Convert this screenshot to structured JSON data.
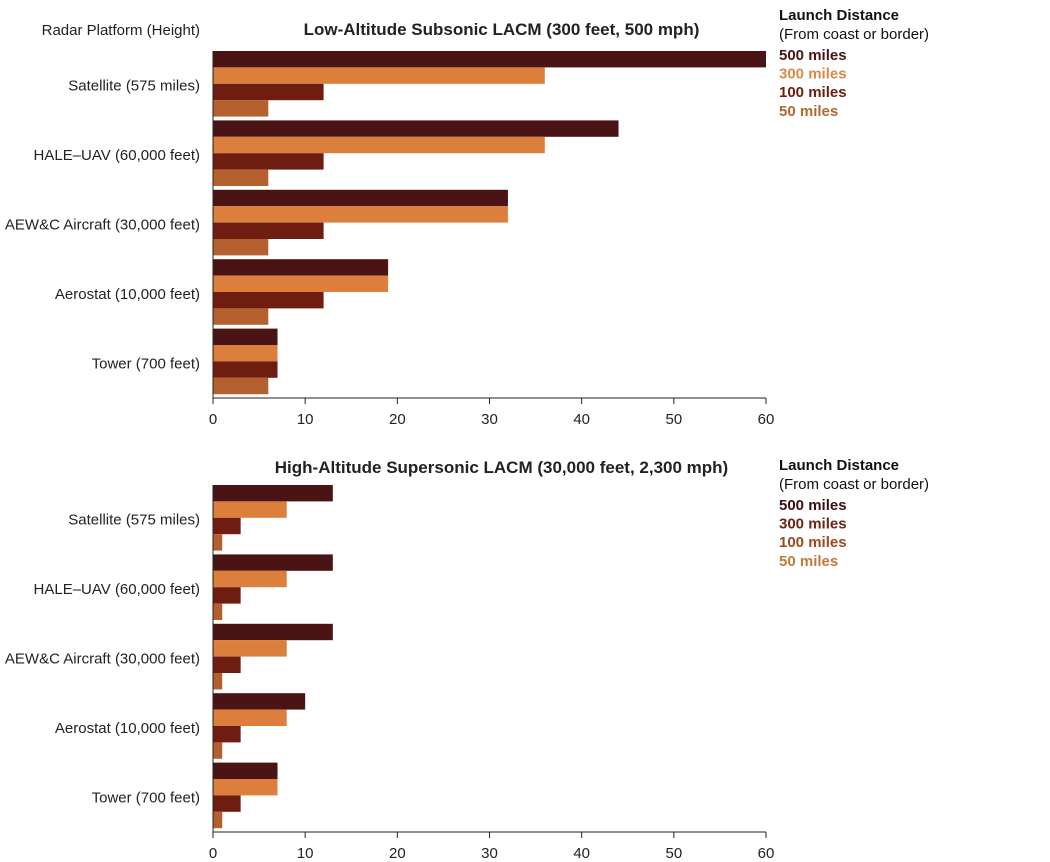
{
  "chart_data": [
    {
      "type": "bar",
      "orientation": "horizontal",
      "title": "Low-Altitude Subsonic LACM (300 feet, 500 mph)",
      "ylabel": "Radar Platform (Height)",
      "xlabel": "",
      "categories": [
        "Satellite (575 miles)",
        "HALE–UAV (60,000 feet)",
        "AEW&C Aircraft (30,000 feet)",
        "Aerostat (10,000 feet)",
        "Tower (700 feet)"
      ],
      "xlim": [
        0,
        60
      ],
      "xticks": [
        "0",
        "10",
        "20",
        "30",
        "40",
        "50",
        "60"
      ],
      "grid": false,
      "legend": {
        "position": "right",
        "title": "Launch Distance",
        "subtitle": "(From coast or border)",
        "items": [
          {
            "label": "500 miles",
            "color": "#4a1414"
          },
          {
            "label": "300 miles",
            "color": "#d98a4a"
          },
          {
            "label": "100 miles",
            "color": "#6e1d10"
          },
          {
            "label": "50 miles",
            "color": "#b4662f"
          }
        ]
      },
      "series": [
        {
          "color": "#4a1414",
          "values": [
            60,
            44,
            32,
            19,
            7
          ]
        },
        {
          "color": "#dc7e3c",
          "values": [
            36,
            36,
            32,
            19,
            7
          ]
        },
        {
          "color": "#6e1d10",
          "values": [
            12,
            12,
            12,
            12,
            7
          ]
        },
        {
          "color": "#b4602e",
          "values": [
            6,
            6,
            6,
            6,
            6
          ]
        }
      ]
    },
    {
      "type": "bar",
      "orientation": "horizontal",
      "title": "High-Altitude Supersonic LACM (30,000 feet, 2,300 mph)",
      "ylabel": "",
      "xlabel": "",
      "categories": [
        "Satellite (575 miles)",
        "HALE–UAV (60,000 feet)",
        "AEW&C Aircraft (30,000 feet)",
        "Aerostat (10,000 feet)",
        "Tower (700 feet)"
      ],
      "xlim": [
        0,
        60
      ],
      "xticks": [
        "0",
        "10",
        "20",
        "30",
        "40",
        "50",
        "60"
      ],
      "grid": false,
      "legend": {
        "position": "right",
        "title": "Launch Distance",
        "subtitle": "(From coast or border)",
        "items": [
          {
            "label": "500 miles",
            "color": "#3c1010"
          },
          {
            "label": "300 miles",
            "color": "#6e2414"
          },
          {
            "label": "100 miles",
            "color": "#9a4a22"
          },
          {
            "label": "50 miles",
            "color": "#c07a3a"
          }
        ]
      },
      "series": [
        {
          "color": "#4a1414",
          "values": [
            13,
            13,
            13,
            10,
            7
          ]
        },
        {
          "color": "#dc7e3c",
          "values": [
            8,
            8,
            8,
            8,
            7
          ]
        },
        {
          "color": "#6e1d10",
          "values": [
            3,
            3,
            3,
            3,
            3
          ]
        },
        {
          "color": "#b4602e",
          "values": [
            1,
            1,
            1,
            1,
            1
          ]
        }
      ]
    }
  ]
}
